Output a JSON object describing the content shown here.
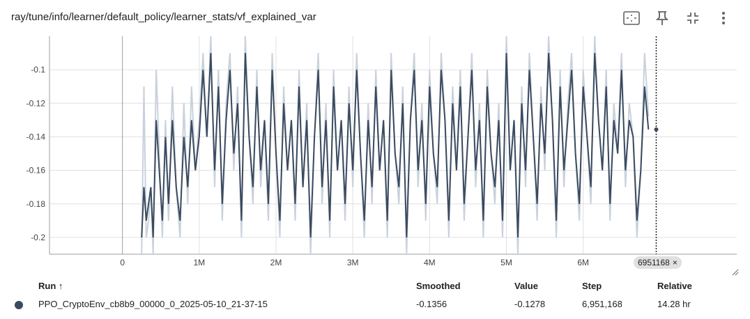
{
  "title": "ray/tune/info/learner/default_policy/learner_stats/vf_explained_var",
  "toolbar": {
    "icons": [
      "fit-domain-icon",
      "pin-icon",
      "collapse-icon",
      "more-vert-icon"
    ]
  },
  "step_badge": {
    "label": "6951168",
    "close": "×"
  },
  "table": {
    "headers": {
      "run": "Run ↑",
      "smoothed": "Smoothed",
      "value": "Value",
      "step": "Step",
      "relative": "Relative"
    },
    "rows": [
      {
        "run": "PPO_CryptoEnv_cb8b9_00000_0_2025-05-10_21-37-15",
        "smoothed": "-0.1356",
        "value": "-0.1278",
        "step": "6,951,168",
        "relative": "14.28 hr",
        "color": "#3a4a5f"
      }
    ]
  },
  "chart_data": {
    "type": "line",
    "title": "",
    "xlabel": "",
    "ylabel": "",
    "xlim": [
      -950000,
      8000000
    ],
    "ylim": [
      -0.21,
      -0.08
    ],
    "x_ticks": [
      0,
      1000000,
      2000000,
      3000000,
      4000000,
      5000000,
      6000000
    ],
    "x_tick_labels": [
      "0",
      "1M",
      "2M",
      "3M",
      "4M",
      "5M",
      "6M"
    ],
    "y_ticks": [
      -0.2,
      -0.18,
      -0.16,
      -0.14,
      -0.12,
      -0.1
    ],
    "y_tick_labels": [
      "-0.2",
      "-0.18",
      "-0.16",
      "-0.14",
      "-0.12",
      "-0.1"
    ],
    "grid": true,
    "cursor_step": 6951168,
    "colors": {
      "raw": "#c9d1dc",
      "smoothed": "#3a4a5f"
    },
    "series": [
      {
        "x": [
          250000,
          280000,
          310000,
          340000,
          370000,
          400000,
          440000,
          480000,
          520000,
          560000,
          600000,
          650000,
          700000,
          750000,
          800000,
          850000,
          900000,
          950000,
          1000000,
          1050000,
          1100000,
          1150000,
          1200000,
          1250000,
          1300000,
          1350000,
          1400000,
          1450000,
          1500000,
          1550000,
          1600000,
          1650000,
          1700000,
          1750000,
          1800000,
          1850000,
          1900000,
          1950000,
          2000000,
          2050000,
          2100000,
          2150000,
          2200000,
          2250000,
          2300000,
          2350000,
          2400000,
          2450000,
          2500000,
          2550000,
          2600000,
          2650000,
          2700000,
          2750000,
          2800000,
          2850000,
          2900000,
          2950000,
          3000000,
          3050000,
          3100000,
          3150000,
          3200000,
          3250000,
          3300000,
          3350000,
          3400000,
          3450000,
          3500000,
          3550000,
          3600000,
          3650000,
          3700000,
          3750000,
          3800000,
          3850000,
          3900000,
          3950000,
          4000000,
          4050000,
          4100000,
          4150000,
          4200000,
          4250000,
          4300000,
          4350000,
          4400000,
          4450000,
          4500000,
          4550000,
          4600000,
          4650000,
          4700000,
          4750000,
          4800000,
          4850000,
          4900000,
          4950000,
          5000000,
          5050000,
          5100000,
          5150000,
          5200000,
          5250000,
          5300000,
          5350000,
          5400000,
          5450000,
          5500000,
          5550000,
          5600000,
          5650000,
          5700000,
          5750000,
          5800000,
          5850000,
          5900000,
          5950000,
          6000000,
          6050000,
          6100000,
          6150000,
          6200000,
          6250000,
          6300000,
          6350000,
          6400000,
          6450000,
          6500000,
          6550000,
          6600000,
          6650000,
          6700000,
          6750000,
          6800000,
          6850000,
          6900000,
          6951168
        ],
        "raw": [
          -0.21,
          -0.11,
          -0.2,
          -0.19,
          -0.17,
          -0.21,
          -0.1,
          -0.15,
          -0.2,
          -0.13,
          -0.19,
          -0.11,
          -0.17,
          -0.2,
          -0.12,
          -0.18,
          -0.11,
          -0.16,
          -0.13,
          -0.09,
          -0.14,
          -0.08,
          -0.17,
          -0.1,
          -0.19,
          -0.12,
          -0.09,
          -0.16,
          -0.11,
          -0.2,
          -0.08,
          -0.14,
          -0.18,
          -0.1,
          -0.17,
          -0.13,
          -0.19,
          -0.09,
          -0.15,
          -0.2,
          -0.11,
          -0.16,
          -0.13,
          -0.19,
          -0.1,
          -0.17,
          -0.12,
          -0.21,
          -0.14,
          -0.09,
          -0.18,
          -0.12,
          -0.2,
          -0.1,
          -0.16,
          -0.13,
          -0.19,
          -0.11,
          -0.17,
          -0.09,
          -0.15,
          -0.2,
          -0.12,
          -0.18,
          -0.1,
          -0.16,
          -0.13,
          -0.2,
          -0.09,
          -0.15,
          -0.18,
          -0.11,
          -0.21,
          -0.13,
          -0.09,
          -0.17,
          -0.12,
          -0.19,
          -0.1,
          -0.15,
          -0.18,
          -0.09,
          -0.13,
          -0.2,
          -0.11,
          -0.16,
          -0.1,
          -0.19,
          -0.14,
          -0.09,
          -0.17,
          -0.12,
          -0.2,
          -0.1,
          -0.15,
          -0.18,
          -0.12,
          -0.2,
          -0.08,
          -0.16,
          -0.13,
          -0.21,
          -0.11,
          -0.17,
          -0.09,
          -0.14,
          -0.19,
          -0.11,
          -0.16,
          -0.08,
          -0.13,
          -0.2,
          -0.1,
          -0.17,
          -0.12,
          -0.09,
          -0.15,
          -0.19,
          -0.1,
          -0.14,
          -0.18,
          -0.08,
          -0.13,
          -0.16,
          -0.1,
          -0.19,
          -0.12,
          -0.15,
          -0.09,
          -0.17,
          -0.12,
          -0.14,
          -0.2,
          -0.16,
          -0.09,
          -0.1278
        ],
        "smoothed": [
          -0.2,
          -0.17,
          -0.19,
          -0.18,
          -0.17,
          -0.2,
          -0.13,
          -0.16,
          -0.19,
          -0.14,
          -0.18,
          -0.13,
          -0.17,
          -0.19,
          -0.14,
          -0.17,
          -0.13,
          -0.16,
          -0.14,
          -0.1,
          -0.14,
          -0.09,
          -0.16,
          -0.11,
          -0.18,
          -0.13,
          -0.1,
          -0.15,
          -0.12,
          -0.19,
          -0.09,
          -0.14,
          -0.17,
          -0.11,
          -0.16,
          -0.13,
          -0.18,
          -0.1,
          -0.15,
          -0.19,
          -0.12,
          -0.16,
          -0.13,
          -0.18,
          -0.11,
          -0.17,
          -0.13,
          -0.2,
          -0.14,
          -0.1,
          -0.17,
          -0.13,
          -0.19,
          -0.11,
          -0.16,
          -0.13,
          -0.18,
          -0.12,
          -0.16,
          -0.1,
          -0.15,
          -0.19,
          -0.13,
          -0.17,
          -0.11,
          -0.16,
          -0.13,
          -0.19,
          -0.1,
          -0.15,
          -0.17,
          -0.12,
          -0.2,
          -0.13,
          -0.1,
          -0.16,
          -0.13,
          -0.18,
          -0.11,
          -0.15,
          -0.17,
          -0.1,
          -0.13,
          -0.19,
          -0.12,
          -0.16,
          -0.11,
          -0.18,
          -0.14,
          -0.1,
          -0.16,
          -0.13,
          -0.19,
          -0.11,
          -0.15,
          -0.17,
          -0.13,
          -0.19,
          -0.09,
          -0.16,
          -0.13,
          -0.2,
          -0.12,
          -0.16,
          -0.1,
          -0.14,
          -0.18,
          -0.12,
          -0.15,
          -0.09,
          -0.13,
          -0.19,
          -0.11,
          -0.16,
          -0.13,
          -0.1,
          -0.15,
          -0.18,
          -0.11,
          -0.14,
          -0.17,
          -0.09,
          -0.13,
          -0.16,
          -0.11,
          -0.18,
          -0.13,
          -0.15,
          -0.1,
          -0.16,
          -0.13,
          -0.14,
          -0.19,
          -0.16,
          -0.11,
          -0.1356
        ]
      }
    ]
  }
}
